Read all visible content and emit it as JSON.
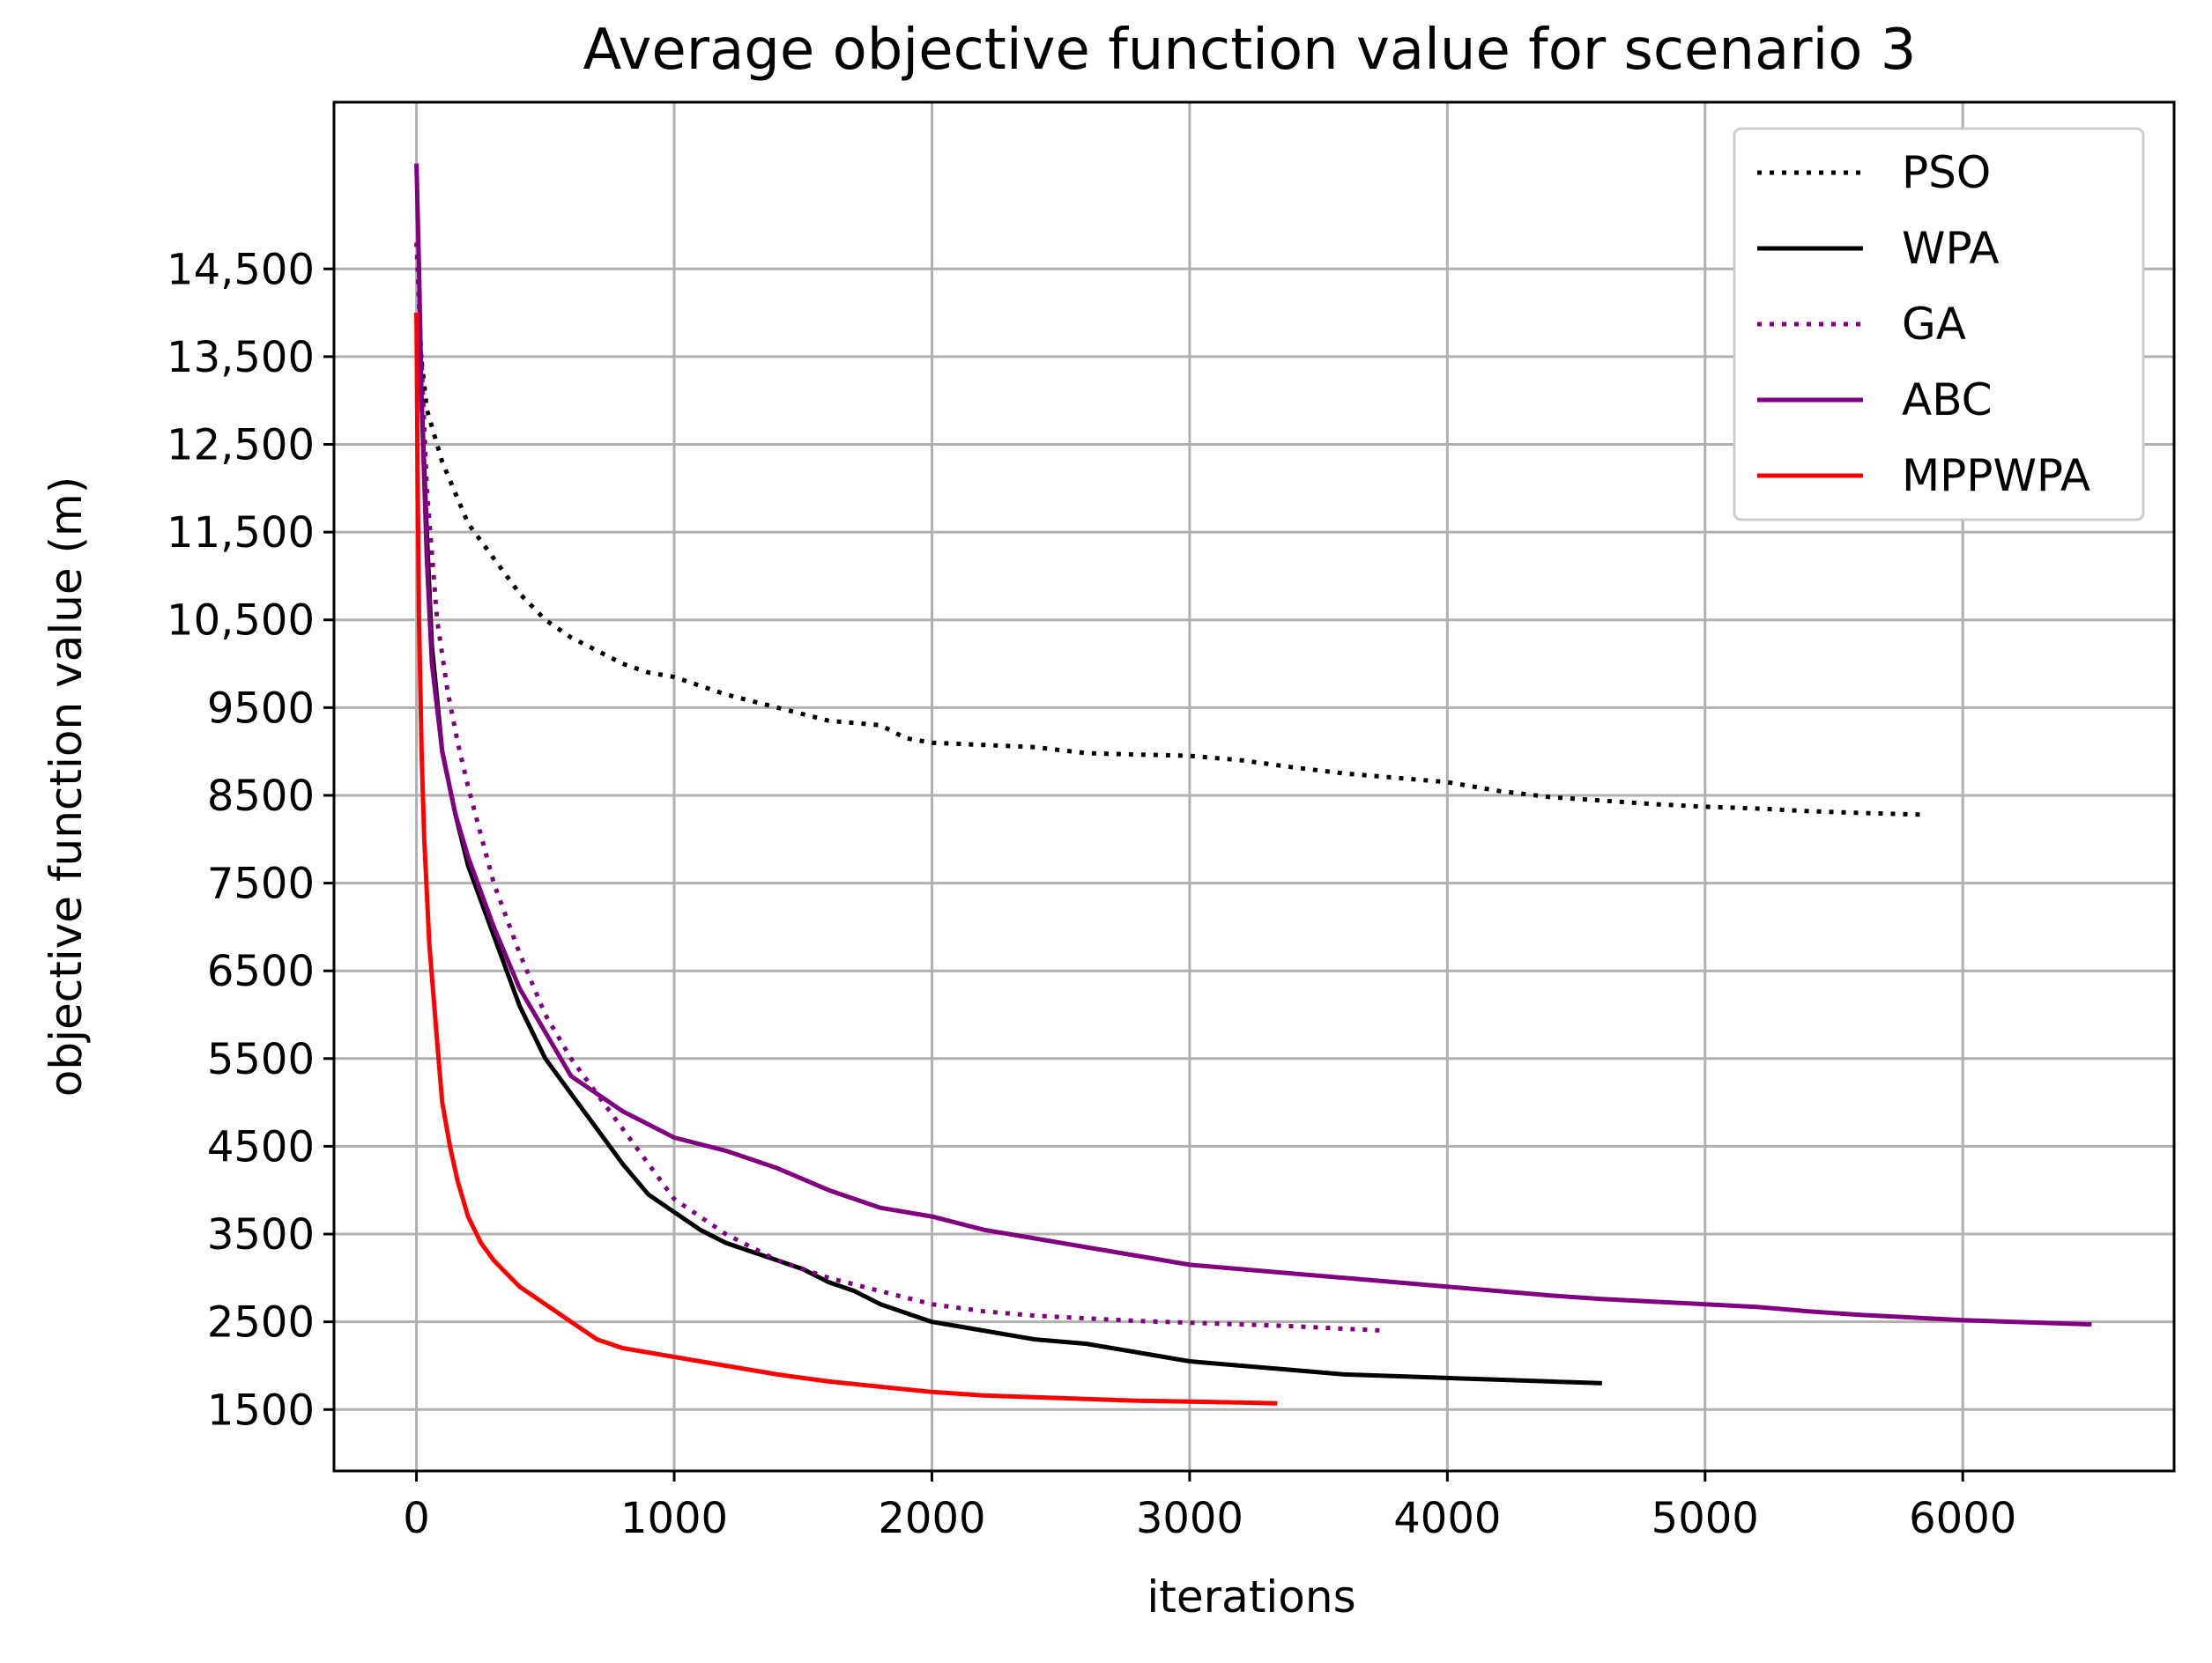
{
  "chart_data": {
    "type": "line",
    "title": "Average objective function value for scenario 3",
    "xlabel": "iterations",
    "ylabel": "objective function value (m)",
    "xlim": [
      -320,
      6820
    ],
    "ylim": [
      800,
      16400
    ],
    "xticks": [
      0,
      1000,
      2000,
      3000,
      4000,
      5000,
      6000
    ],
    "xtick_labels": [
      "0",
      "1000",
      "2000",
      "3000",
      "4000",
      "5000",
      "6000"
    ],
    "yticks": [
      1500,
      2500,
      3500,
      4500,
      5500,
      6500,
      7500,
      8500,
      9500,
      10500,
      11500,
      12500,
      13500,
      14500
    ],
    "ytick_labels": [
      "1500",
      "2500",
      "3500",
      "4500",
      "5500",
      "6500",
      "7500",
      "8500",
      "9500",
      "10,500",
      "11,500",
      "12,500",
      "13,500",
      "14,500"
    ],
    "grid": true,
    "legend_position": "top-right",
    "series": [
      {
        "name": "PSO",
        "color": "#000000",
        "style": "dotted",
        "points": [
          [
            0,
            14000
          ],
          [
            40,
            12900
          ],
          [
            100,
            12300
          ],
          [
            200,
            11600
          ],
          [
            300,
            11200
          ],
          [
            400,
            10800
          ],
          [
            500,
            10500
          ],
          [
            600,
            10300
          ],
          [
            700,
            10150
          ],
          [
            800,
            10000
          ],
          [
            900,
            9900
          ],
          [
            1000,
            9850
          ],
          [
            1200,
            9650
          ],
          [
            1400,
            9500
          ],
          [
            1600,
            9350
          ],
          [
            1800,
            9300
          ],
          [
            1900,
            9150
          ],
          [
            2000,
            9100
          ],
          [
            2400,
            9050
          ],
          [
            2600,
            8980
          ],
          [
            3000,
            8950
          ],
          [
            3200,
            8900
          ],
          [
            3400,
            8820
          ],
          [
            3600,
            8750
          ],
          [
            3800,
            8700
          ],
          [
            4000,
            8650
          ],
          [
            4200,
            8550
          ],
          [
            4400,
            8480
          ],
          [
            4600,
            8440
          ],
          [
            4800,
            8400
          ],
          [
            5000,
            8370
          ],
          [
            5200,
            8350
          ],
          [
            5400,
            8320
          ],
          [
            5600,
            8300
          ],
          [
            5850,
            8280
          ]
        ]
      },
      {
        "name": "WPA",
        "color": "#000000",
        "style": "solid",
        "points": [
          [
            0,
            14000
          ],
          [
            20,
            13000
          ],
          [
            40,
            11500
          ],
          [
            60,
            10200
          ],
          [
            80,
            9600
          ],
          [
            100,
            9000
          ],
          [
            150,
            8300
          ],
          [
            200,
            7700
          ],
          [
            300,
            6900
          ],
          [
            400,
            6100
          ],
          [
            500,
            5500
          ],
          [
            600,
            5100
          ],
          [
            700,
            4700
          ],
          [
            800,
            4300
          ],
          [
            900,
            3950
          ],
          [
            1000,
            3750
          ],
          [
            1100,
            3550
          ],
          [
            1200,
            3400
          ],
          [
            1300,
            3300
          ],
          [
            1400,
            3200
          ],
          [
            1500,
            3100
          ],
          [
            1600,
            2950
          ],
          [
            1700,
            2850
          ],
          [
            1800,
            2700
          ],
          [
            1900,
            2600
          ],
          [
            2000,
            2500
          ],
          [
            2100,
            2450
          ],
          [
            2200,
            2400
          ],
          [
            2400,
            2300
          ],
          [
            2600,
            2250
          ],
          [
            2800,
            2150
          ],
          [
            3000,
            2050
          ],
          [
            3200,
            2000
          ],
          [
            3400,
            1950
          ],
          [
            3600,
            1900
          ],
          [
            3800,
            1880
          ],
          [
            4000,
            1860
          ],
          [
            4200,
            1840
          ],
          [
            4400,
            1820
          ],
          [
            4600,
            1800
          ]
        ]
      },
      {
        "name": "GA",
        "color": "#800080",
        "style": "dotted",
        "points": [
          [
            0,
            14800
          ],
          [
            40,
            12000
          ],
          [
            80,
            10500
          ],
          [
            120,
            9700
          ],
          [
            160,
            9100
          ],
          [
            200,
            8600
          ],
          [
            300,
            7500
          ],
          [
            400,
            6700
          ],
          [
            500,
            6000
          ],
          [
            600,
            5500
          ],
          [
            700,
            5100
          ],
          [
            800,
            4700
          ],
          [
            900,
            4300
          ],
          [
            1000,
            3900
          ],
          [
            1200,
            3500
          ],
          [
            1400,
            3200
          ],
          [
            1600,
            3000
          ],
          [
            1800,
            2850
          ],
          [
            2000,
            2700
          ],
          [
            2200,
            2620
          ],
          [
            2400,
            2570
          ],
          [
            2600,
            2540
          ],
          [
            2800,
            2510
          ],
          [
            3000,
            2490
          ],
          [
            3200,
            2470
          ],
          [
            3400,
            2450
          ],
          [
            3600,
            2420
          ],
          [
            3750,
            2400
          ]
        ]
      },
      {
        "name": "ABC",
        "color": "#800080",
        "style": "solid",
        "points": [
          [
            0,
            15700
          ],
          [
            10,
            14500
          ],
          [
            20,
            13000
          ],
          [
            40,
            11200
          ],
          [
            60,
            10000
          ],
          [
            100,
            9000
          ],
          [
            150,
            8300
          ],
          [
            200,
            7800
          ],
          [
            300,
            7000
          ],
          [
            400,
            6300
          ],
          [
            500,
            5800
          ],
          [
            600,
            5300
          ],
          [
            700,
            5100
          ],
          [
            800,
            4900
          ],
          [
            900,
            4750
          ],
          [
            1000,
            4600
          ],
          [
            1200,
            4450
          ],
          [
            1400,
            4250
          ],
          [
            1600,
            4000
          ],
          [
            1800,
            3800
          ],
          [
            2000,
            3700
          ],
          [
            2200,
            3550
          ],
          [
            2400,
            3450
          ],
          [
            2600,
            3350
          ],
          [
            2800,
            3250
          ],
          [
            3000,
            3150
          ],
          [
            3200,
            3100
          ],
          [
            3400,
            3050
          ],
          [
            3600,
            3000
          ],
          [
            3800,
            2950
          ],
          [
            4000,
            2900
          ],
          [
            4200,
            2850
          ],
          [
            4400,
            2800
          ],
          [
            4600,
            2760
          ],
          [
            4800,
            2730
          ],
          [
            5000,
            2700
          ],
          [
            5200,
            2670
          ],
          [
            5400,
            2620
          ],
          [
            5600,
            2580
          ],
          [
            5800,
            2550
          ],
          [
            6000,
            2520
          ],
          [
            6200,
            2500
          ],
          [
            6500,
            2470
          ]
        ]
      },
      {
        "name": "MPPWPA",
        "color": "#ff0000",
        "style": "solid",
        "points": [
          [
            0,
            14000
          ],
          [
            5,
            12000
          ],
          [
            10,
            10500
          ],
          [
            20,
            9000
          ],
          [
            30,
            8000
          ],
          [
            50,
            6800
          ],
          [
            80,
            5700
          ],
          [
            100,
            5000
          ],
          [
            130,
            4500
          ],
          [
            160,
            4100
          ],
          [
            200,
            3700
          ],
          [
            250,
            3400
          ],
          [
            300,
            3200
          ],
          [
            350,
            3050
          ],
          [
            400,
            2900
          ],
          [
            500,
            2700
          ],
          [
            600,
            2500
          ],
          [
            700,
            2300
          ],
          [
            800,
            2200
          ],
          [
            1000,
            2100
          ],
          [
            1200,
            2000
          ],
          [
            1400,
            1900
          ],
          [
            1600,
            1820
          ],
          [
            1800,
            1760
          ],
          [
            2000,
            1700
          ],
          [
            2200,
            1660
          ],
          [
            2400,
            1640
          ],
          [
            2600,
            1620
          ],
          [
            2800,
            1600
          ],
          [
            3000,
            1590
          ],
          [
            3200,
            1580
          ],
          [
            3340,
            1570
          ]
        ]
      }
    ]
  }
}
